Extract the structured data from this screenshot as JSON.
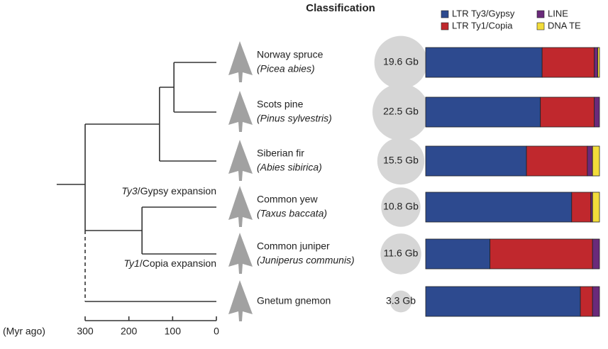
{
  "chart_data": [
    {
      "type": "tree",
      "xlabel": "(Myr ago)",
      "xlim": [
        300,
        0
      ],
      "xticks": [
        300,
        200,
        100,
        0
      ],
      "root_age": 365,
      "nodes": [
        {
          "age": 97
        },
        {
          "age": 130
        },
        {
          "age": 170
        },
        {
          "age": 300
        }
      ],
      "annotations": [
        {
          "italic": "Ty3",
          "text": "/Gypsy expansion"
        },
        {
          "italic": "Ty1",
          "text": "/Copia expansion"
        }
      ],
      "categories": [
        {
          "name": "Norway spruce",
          "latin": "(Picea abies)"
        },
        {
          "name": "Scots pine",
          "latin": "(Pinus sylvestris)"
        },
        {
          "name": "Siberian fir",
          "latin": "(Abies sibirica)"
        },
        {
          "name": "Common yew",
          "latin": "(Taxus baccata)"
        },
        {
          "name": "Common juniper",
          "latin": "(Juniperus communis)"
        },
        {
          "name": "Gnetum gnemon",
          "latin": null
        }
      ]
    },
    {
      "type": "bubble",
      "values": [
        19.6,
        22.5,
        15.5,
        10.8,
        11.6,
        3.3
      ],
      "value_labels": [
        "19.6 Gb",
        "22.5 Gb",
        "15.5 Gb",
        "10.8 Gb",
        "11.6 Gb",
        "3.3 Gb"
      ],
      "color": "#d6d6d6"
    },
    {
      "type": "stacked-bar",
      "title": "Classification",
      "xlim": [
        0,
        100
      ],
      "series": [
        {
          "name": "LTR Ty3/Gypsy",
          "color": "#2d4a8f",
          "values": [
            67,
            66,
            58,
            84,
            37,
            89
          ]
        },
        {
          "name": "LTR Ty1/Copia",
          "color": "#c0282d",
          "values": [
            30,
            31,
            35,
            11,
            59,
            7
          ]
        },
        {
          "name": "LINE",
          "color": "#6a2a7a",
          "values": [
            2,
            3,
            3,
            1,
            4,
            4
          ]
        },
        {
          "name": "DNA TE",
          "color": "#f2dc3a",
          "values": [
            1,
            0,
            4,
            4,
            0,
            0
          ]
        }
      ]
    }
  ]
}
